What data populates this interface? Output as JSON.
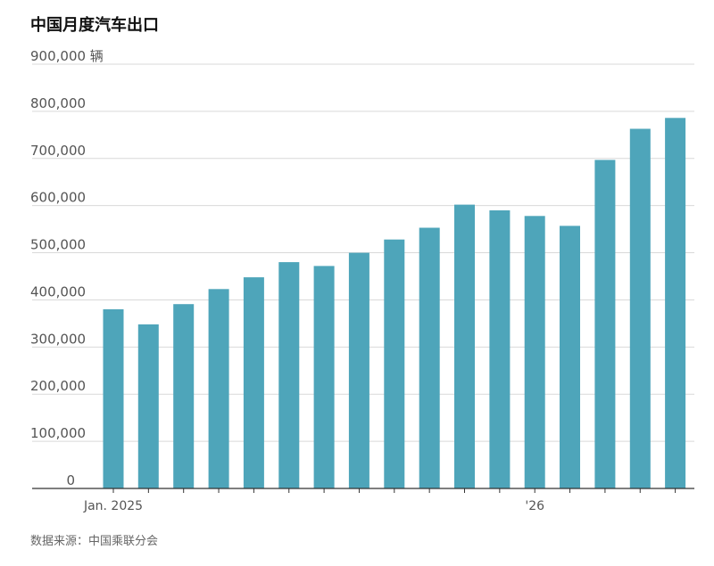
{
  "title": "中国月度汽车出口",
  "source": "数据来源：中国乘联分会",
  "colors": {
    "bar": "#4ea5ba",
    "grid": "#d9d9d9",
    "axis": "#333333",
    "tick_text": "#555555"
  },
  "chart_data": {
    "type": "bar",
    "title": "中国月度汽车出口",
    "xlabel": "",
    "ylabel": "",
    "unit_label": "辆",
    "ylim": [
      0,
      900000
    ],
    "y_ticks": [
      0,
      100000,
      200000,
      300000,
      400000,
      500000,
      600000,
      700000,
      800000,
      900000
    ],
    "y_tick_labels": [
      "0",
      "100,000",
      "200,000",
      "300,000",
      "400,000",
      "500,000",
      "600,000",
      "700,000",
      "800,000",
      "900,000 辆"
    ],
    "categories": [
      "2025-01",
      "2025-02",
      "2025-03",
      "2025-04",
      "2025-05",
      "2025-06",
      "2025-07",
      "2025-08",
      "2025-09",
      "2025-10",
      "2025-11",
      "2025-12",
      "2026-01",
      "2026-02",
      "2026-03",
      "2026-04",
      "2026-05"
    ],
    "values": [
      380000,
      348000,
      391000,
      423000,
      448000,
      480000,
      472000,
      500000,
      528000,
      553000,
      602000,
      590000,
      578000,
      557000,
      697000,
      763000,
      786000
    ],
    "x_tick_labels": [
      {
        "index": 0,
        "label": "Jan. 2025"
      },
      {
        "index": 12,
        "label": "'26"
      }
    ],
    "grid": true,
    "legend": "none"
  }
}
